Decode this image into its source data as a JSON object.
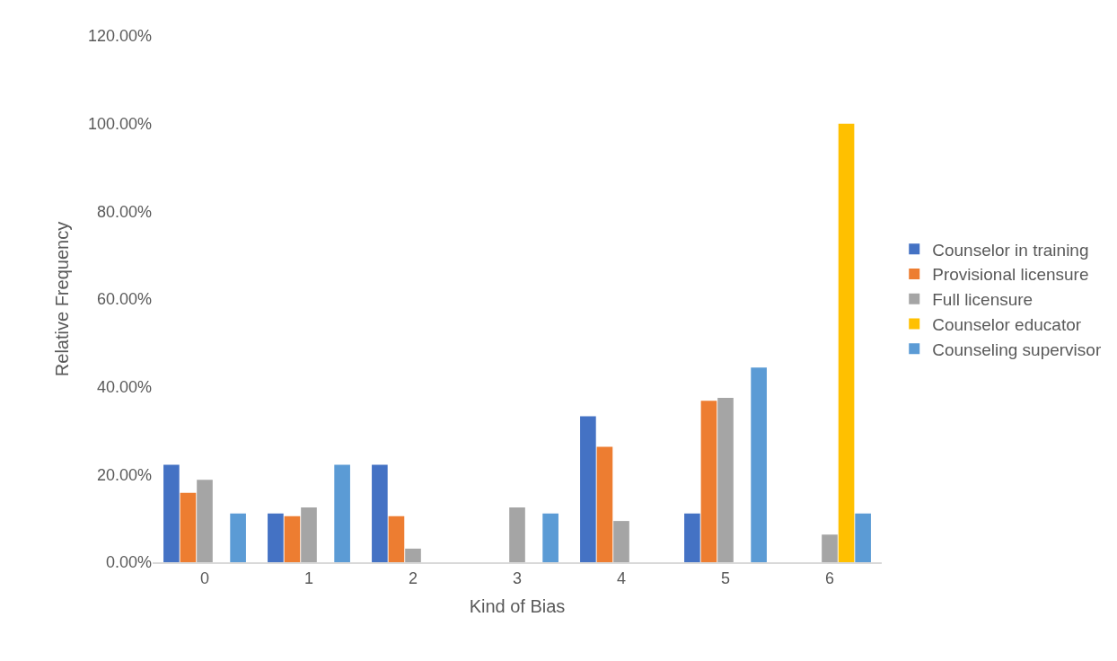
{
  "chart_data": {
    "type": "bar",
    "xlabel": "Kind of Bias",
    "ylabel": "Relative Frequency",
    "categories": [
      "0",
      "1",
      "2",
      "3",
      "4",
      "5",
      "6"
    ],
    "series": [
      {
        "name": "Counselor in training",
        "color": "#4472c4",
        "values": [
          22.2,
          11.1,
          22.2,
          0,
          33.3,
          11.1,
          0
        ]
      },
      {
        "name": "Provisional licensure",
        "color": "#ed7d31",
        "values": [
          15.8,
          10.5,
          10.5,
          0,
          26.3,
          36.8,
          0
        ]
      },
      {
        "name": "Full licensure",
        "color": "#a5a5a5",
        "values": [
          18.8,
          12.5,
          3.1,
          12.5,
          9.4,
          37.5,
          6.3
        ]
      },
      {
        "name": "Counselor educator",
        "color": "#ffc000",
        "values": [
          0,
          0,
          0,
          0,
          0,
          0,
          100
        ]
      },
      {
        "name": "Counseling supervisor",
        "color": "#5b9bd5",
        "values": [
          11.1,
          22.2,
          0,
          11.1,
          0,
          44.4,
          11.1
        ]
      }
    ],
    "ylim": [
      0,
      120
    ],
    "yticks": [
      {
        "value": 0,
        "label": "0.00%"
      },
      {
        "value": 20,
        "label": "20.00%"
      },
      {
        "value": 40,
        "label": "40.00%"
      },
      {
        "value": 60,
        "label": "60.00%"
      },
      {
        "value": 80,
        "label": "80.00%"
      },
      {
        "value": 100,
        "label": "100.00%"
      },
      {
        "value": 120,
        "label": "120.00%"
      }
    ],
    "grid": false,
    "legend": "right"
  }
}
